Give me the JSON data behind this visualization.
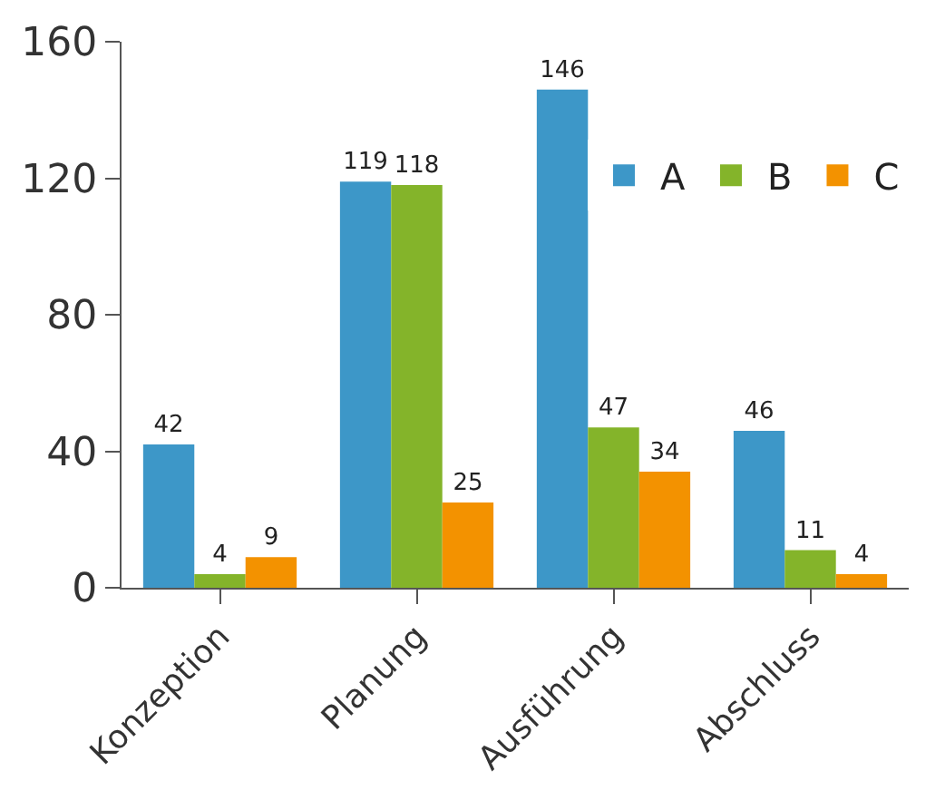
{
  "chart_data": {
    "type": "bar",
    "categories": [
      "Konzeption",
      "Planung",
      "Ausführung",
      "Abschluss"
    ],
    "series": [
      {
        "name": "A",
        "color": "#3d97c8",
        "values": [
          42,
          119,
          146,
          46
        ]
      },
      {
        "name": "B",
        "color": "#84b42a",
        "values": [
          4,
          118,
          47,
          11
        ]
      },
      {
        "name": "C",
        "color": "#f39200",
        "values": [
          9,
          25,
          34,
          4
        ]
      }
    ],
    "ylim": [
      0,
      160
    ],
    "yticks": [
      0,
      40,
      80,
      120,
      160
    ],
    "legend": "top right",
    "data_labels": true
  }
}
